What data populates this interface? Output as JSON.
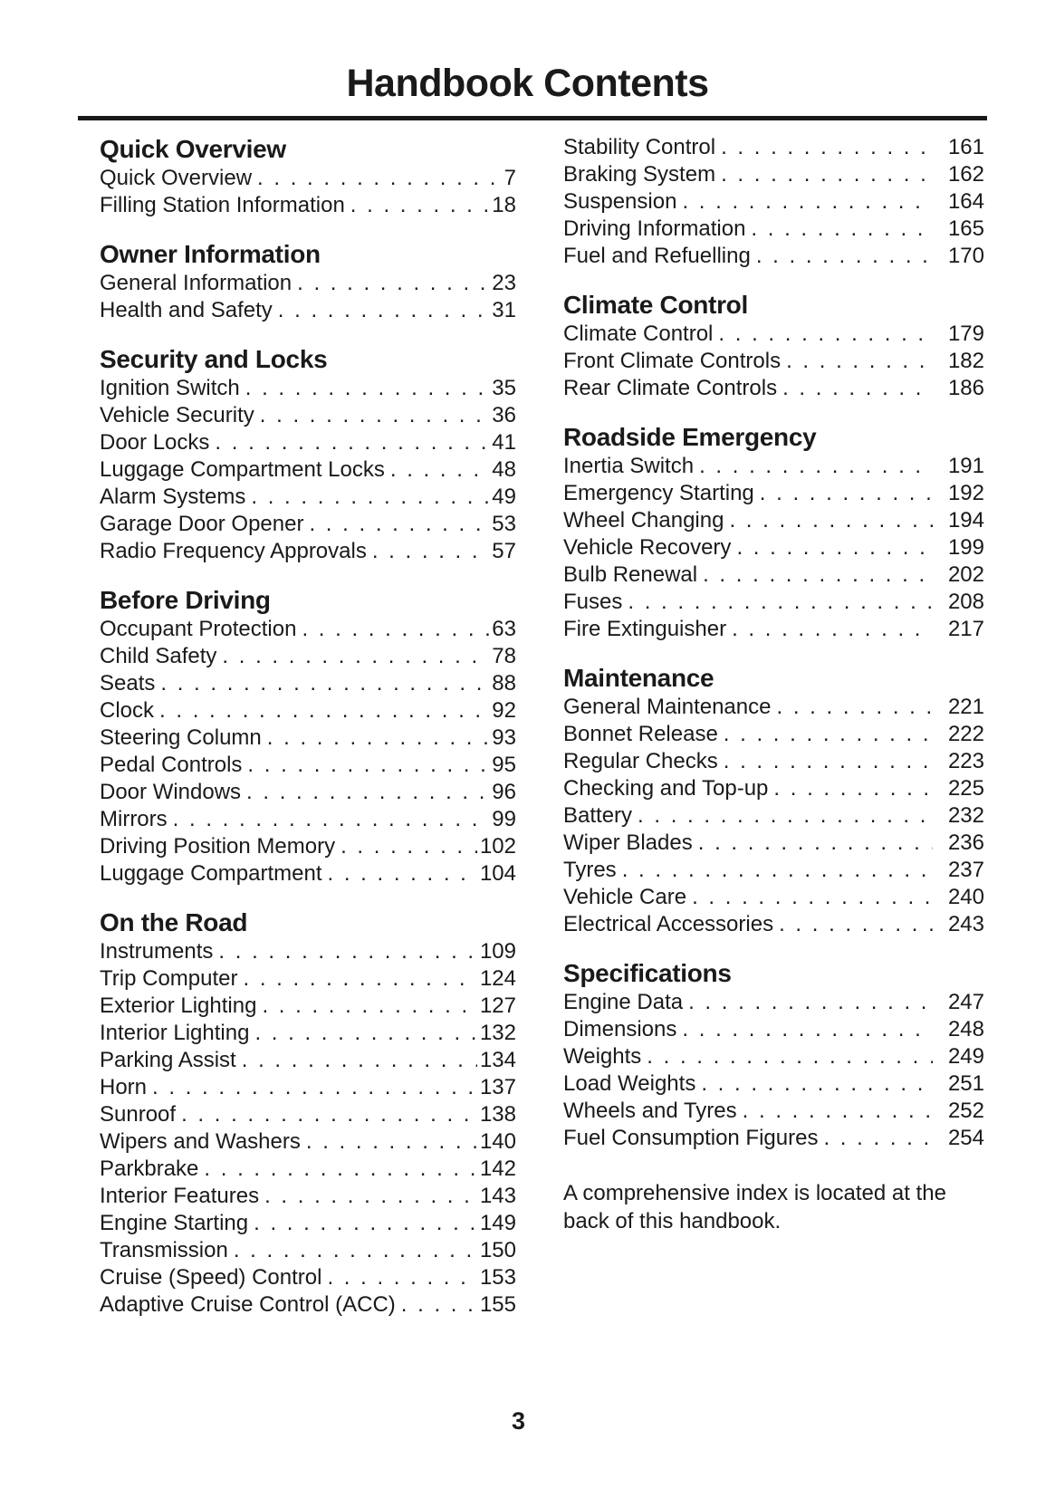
{
  "page_title": "Handbook Contents",
  "footer_page_number": "3",
  "note": "A comprehensive index is located at the back of this handbook.",
  "colors": {
    "background": "#ffffff",
    "text": "#1a1a1a",
    "rule": "#1a1a1a"
  },
  "columns": {
    "left": [
      {
        "heading": "Quick Overview",
        "entries": [
          {
            "label": "Quick Overview",
            "page": 7
          },
          {
            "label": "Filling Station Information",
            "page": 18
          }
        ]
      },
      {
        "heading": "Owner Information",
        "entries": [
          {
            "label": "General Information",
            "page": 23
          },
          {
            "label": "Health and Safety",
            "page": 31
          }
        ]
      },
      {
        "heading": "Security and Locks",
        "entries": [
          {
            "label": "Ignition Switch",
            "page": 35
          },
          {
            "label": "Vehicle Security",
            "page": 36
          },
          {
            "label": "Door Locks",
            "page": 41
          },
          {
            "label": "Luggage Compartment Locks",
            "page": 48
          },
          {
            "label": "Alarm Systems",
            "page": 49
          },
          {
            "label": "Garage Door Opener",
            "page": 53
          },
          {
            "label": "Radio Frequency Approvals",
            "page": 57
          }
        ]
      },
      {
        "heading": "Before Driving",
        "entries": [
          {
            "label": "Occupant Protection",
            "page": 63
          },
          {
            "label": "Child Safety",
            "page": 78
          },
          {
            "label": "Seats",
            "page": 88
          },
          {
            "label": "Clock",
            "page": 92
          },
          {
            "label": "Steering Column",
            "page": 93
          },
          {
            "label": "Pedal Controls",
            "page": 95
          },
          {
            "label": "Door Windows",
            "page": 96
          },
          {
            "label": "Mirrors",
            "page": 99
          },
          {
            "label": "Driving Position Memory",
            "page": 102
          },
          {
            "label": "Luggage Compartment",
            "page": 104
          }
        ]
      },
      {
        "heading": "On the Road",
        "entries": [
          {
            "label": "Instruments",
            "page": 109
          },
          {
            "label": "Trip Computer",
            "page": 124
          },
          {
            "label": "Exterior Lighting",
            "page": 127
          },
          {
            "label": "Interior Lighting",
            "page": 132
          },
          {
            "label": "Parking Assist",
            "page": 134
          },
          {
            "label": "Horn",
            "page": 137
          },
          {
            "label": "Sunroof",
            "page": 138
          },
          {
            "label": "Wipers and Washers",
            "page": 140
          },
          {
            "label": "Parkbrake",
            "page": 142
          },
          {
            "label": "Interior Features",
            "page": 143
          },
          {
            "label": "Engine Starting",
            "page": 149
          },
          {
            "label": "Transmission",
            "page": 150
          },
          {
            "label": "Cruise (Speed) Control",
            "page": 153
          },
          {
            "label": "Adaptive Cruise Control (ACC)",
            "page": 155
          }
        ]
      }
    ],
    "right": [
      {
        "heading": "",
        "entries": [
          {
            "label": "Stability Control",
            "page": 161
          },
          {
            "label": "Braking System",
            "page": 162
          },
          {
            "label": "Suspension",
            "page": 164
          },
          {
            "label": "Driving Information",
            "page": 165
          },
          {
            "label": "Fuel and Refuelling",
            "page": 170
          }
        ]
      },
      {
        "heading": "Climate Control",
        "entries": [
          {
            "label": "Climate Control",
            "page": 179
          },
          {
            "label": "Front Climate Controls",
            "page": 182
          },
          {
            "label": "Rear Climate Controls",
            "page": 186
          }
        ]
      },
      {
        "heading": "Roadside Emergency",
        "entries": [
          {
            "label": "Inertia Switch",
            "page": 191
          },
          {
            "label": "Emergency Starting",
            "page": 192
          },
          {
            "label": "Wheel Changing",
            "page": 194
          },
          {
            "label": "Vehicle Recovery",
            "page": 199
          },
          {
            "label": "Bulb Renewal",
            "page": 202
          },
          {
            "label": "Fuses",
            "page": 208
          },
          {
            "label": "Fire Extinguisher",
            "page": 217
          }
        ]
      },
      {
        "heading": "Maintenance",
        "entries": [
          {
            "label": "General Maintenance",
            "page": 221
          },
          {
            "label": "Bonnet Release",
            "page": 222
          },
          {
            "label": "Regular Checks",
            "page": 223
          },
          {
            "label": "Checking and Top-up",
            "page": 225
          },
          {
            "label": "Battery",
            "page": 232
          },
          {
            "label": "Wiper Blades",
            "page": 236
          },
          {
            "label": "Tyres",
            "page": 237
          },
          {
            "label": "Vehicle Care",
            "page": 240
          },
          {
            "label": "Electrical Accessories",
            "page": 243
          }
        ]
      },
      {
        "heading": "Specifications",
        "entries": [
          {
            "label": "Engine Data",
            "page": 247
          },
          {
            "label": "Dimensions",
            "page": 248
          },
          {
            "label": "Weights",
            "page": 249
          },
          {
            "label": "Load Weights",
            "page": 251
          },
          {
            "label": "Wheels and Tyres",
            "page": 252
          },
          {
            "label": "Fuel Consumption Figures",
            "page": 254
          }
        ]
      }
    ]
  }
}
